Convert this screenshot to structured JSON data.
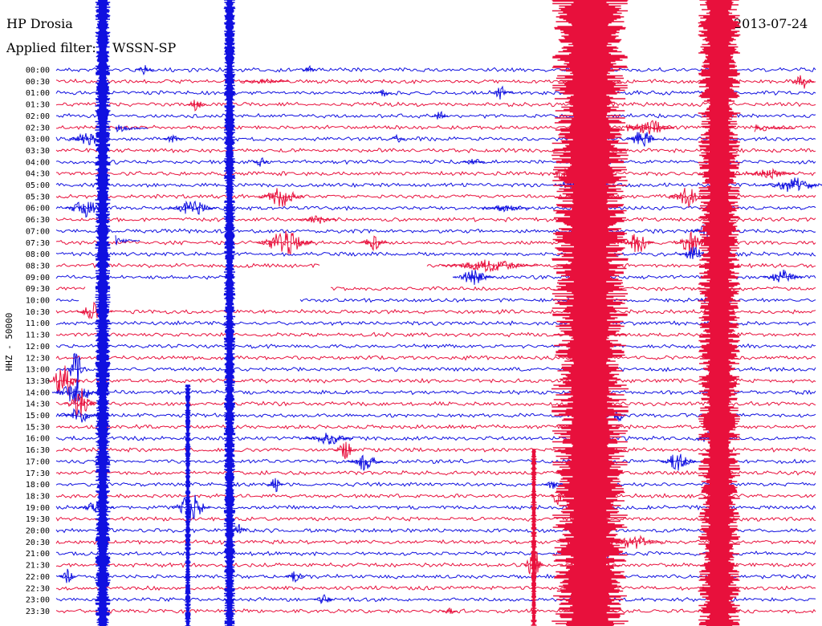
{
  "header": {
    "station": "HP Drosia",
    "filter_label": "Applied filter:",
    "filter_value": "WSSN-SP",
    "date": "2013-07-24"
  },
  "chart_data": {
    "type": "line",
    "title": "HP Drosia",
    "ylabel": "HHZ - 50000",
    "colors": {
      "even": "#1010e0",
      "odd": "#e8103c"
    },
    "hour_labels": [
      "00:00",
      "00:30",
      "01:00",
      "01:30",
      "02:00",
      "02:30",
      "03:00",
      "03:30",
      "04:00",
      "04:30",
      "05:00",
      "05:30",
      "06:00",
      "06:30",
      "07:00",
      "07:30",
      "08:00",
      "08:30",
      "09:00",
      "09:30",
      "10:00",
      "10:30",
      "11:00",
      "11:30",
      "12:00",
      "12:30",
      "13:00",
      "13:30",
      "14:00",
      "14:30",
      "15:00",
      "15:30",
      "16:00",
      "16:30",
      "17:00",
      "17:30",
      "18:00",
      "18:30",
      "19:00",
      "19:30",
      "20:00",
      "20:30",
      "21:00",
      "21:30",
      "22:00",
      "22:30",
      "23:00",
      "23:30"
    ]
  }
}
